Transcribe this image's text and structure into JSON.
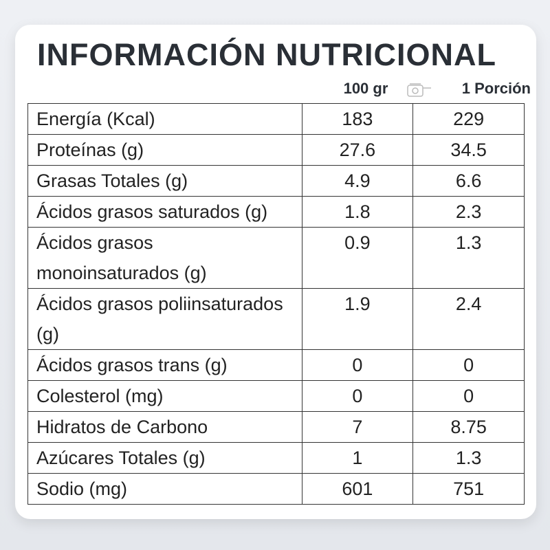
{
  "title": "INFORMACIÓN NUTRICIONAL",
  "columns": [
    "100 gr",
    "1 Porción"
  ],
  "rows": [
    [
      "Energía (Kcal)",
      "183",
      "229"
    ],
    [
      "Proteínas (g)",
      "27.6",
      "34.5"
    ],
    [
      "Grasas Totales (g)",
      "4.9",
      "6.6"
    ],
    [
      "Ácidos grasos saturados (g)",
      "1.8",
      "2.3"
    ],
    [
      "Ácidos grasos monoinsaturados  (g)",
      "0.9",
      "1.3"
    ],
    [
      "Ácidos grasos poliinsaturados (g)",
      "1.9",
      "2.4"
    ],
    [
      "Ácidos grasos trans (g)",
      "0",
      "0"
    ],
    [
      "Colesterol (mg)",
      "0",
      "0"
    ],
    [
      "Hidratos de Carbono",
      "7",
      "8.75"
    ],
    [
      "Azúcares Totales (g)",
      "1",
      "1.3"
    ],
    [
      "Sodio (mg)",
      "601",
      "751"
    ]
  ]
}
